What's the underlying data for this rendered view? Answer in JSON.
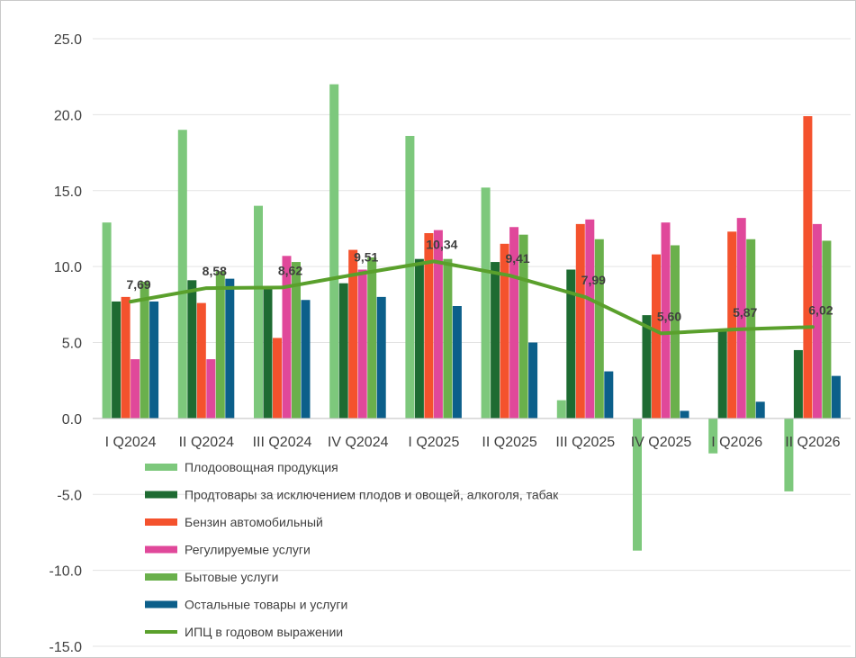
{
  "chart_data": {
    "type": "bar",
    "title": "",
    "xlabel": "",
    "ylabel": "",
    "ylim": [
      -15,
      25
    ],
    "yticks": [
      25,
      20,
      15,
      10,
      5,
      0,
      -5,
      -10,
      -15
    ],
    "ytick_labels": [
      "25.0",
      "20.0",
      "15.0",
      "10.0",
      "5.0",
      "0.0",
      "-5.0",
      "-10.0",
      "-15.0"
    ],
    "grid": true,
    "legend_position": "bottom-left",
    "categories": [
      "I Q2024",
      "II Q2024",
      "III Q2024",
      "IV Q2024",
      "I Q2025",
      "II Q2025",
      "III Q2025",
      "IV Q2025",
      "I Q2026",
      "II Q2026"
    ],
    "series": [
      {
        "name": "Плодоовощная продукция",
        "color": "#7dc87c",
        "values": [
          12.9,
          19.0,
          14.0,
          22.0,
          18.6,
          15.2,
          1.2,
          -8.7,
          -2.3,
          -4.8
        ]
      },
      {
        "name": "Продтовары за исключением плодов и овощей, алкоголя, табак",
        "color": "#1e6b32",
        "values": [
          7.7,
          9.1,
          8.7,
          8.9,
          10.5,
          10.3,
          9.8,
          6.8,
          5.8,
          4.5
        ]
      },
      {
        "name": "Бензин автомобильный",
        "color": "#f4522d",
        "values": [
          8.0,
          7.6,
          5.3,
          11.1,
          12.2,
          11.5,
          12.8,
          10.8,
          12.3,
          19.9
        ]
      },
      {
        "name": "Регулируемые услуги",
        "color": "#e0489a",
        "values": [
          3.9,
          3.9,
          10.7,
          9.8,
          12.4,
          12.6,
          13.1,
          12.9,
          13.2,
          12.8
        ]
      },
      {
        "name": "Бытовые услуги",
        "color": "#6ab04c",
        "values": [
          9.0,
          9.7,
          10.3,
          10.6,
          10.5,
          12.1,
          11.8,
          11.4,
          11.8,
          11.7
        ]
      },
      {
        "name": "Остальные товары и услуги",
        "color": "#0c5f8a",
        "values": [
          7.7,
          9.2,
          7.8,
          8.0,
          7.4,
          5.0,
          3.1,
          0.5,
          1.1,
          2.8
        ]
      }
    ],
    "line_series": {
      "name": "ИПЦ в годовом выражении",
      "color": "#5aa02c",
      "values": [
        7.69,
        8.58,
        8.62,
        9.51,
        10.34,
        9.41,
        7.99,
        5.6,
        5.87,
        6.02
      ],
      "labels": [
        "7,69",
        "8,58",
        "8,62",
        "9,51",
        "10,34",
        "9,41",
        "7,99",
        "5,60",
        "5,87",
        "6,02"
      ]
    }
  }
}
